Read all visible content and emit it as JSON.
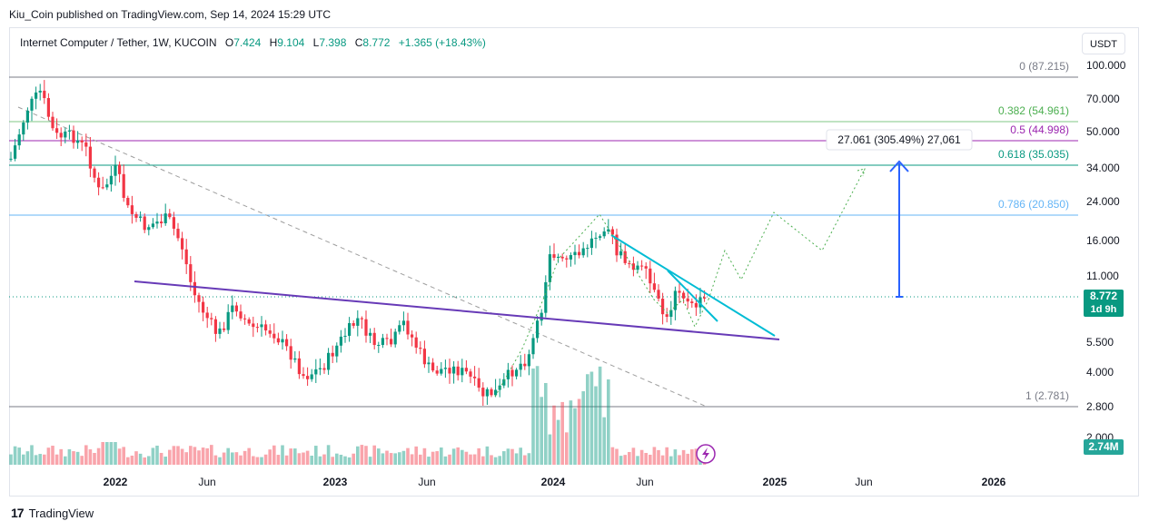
{
  "publisher_text": "Kiu_Coin published on TradingView.com, Sep 14, 2024 15:29 UTC",
  "legend": {
    "symbol": "Internet Computer / Tether, 1W, KUCOIN",
    "open_label": "O",
    "open": "7.424",
    "high_label": "H",
    "high": "9.104",
    "low_label": "L",
    "low": "7.398",
    "close_label": "C",
    "close": "8.772",
    "change": "+1.365 (+18.43%)"
  },
  "currency_button": "USDT",
  "price_axis": {
    "ticks": [
      "100.000",
      "70.000",
      "50.000",
      "34.000",
      "24.000",
      "16.000",
      "11.000",
      "5.500",
      "4.000",
      "2.800",
      "2.000"
    ],
    "last_price": "8.772",
    "countdown": "1d 9h",
    "volume_label": "2.74M"
  },
  "time_axis": {
    "ticks": [
      "2022",
      "Jun",
      "2023",
      "Jun",
      "2024",
      "Jun",
      "2025",
      "Jun",
      "2026"
    ]
  },
  "fib_levels": [
    {
      "label": "0 (87.215)",
      "color": "#787b86"
    },
    {
      "label": "0.382 (54.961)",
      "color": "#4caf50"
    },
    {
      "label": "0.5 (44.998)",
      "color": "#9c27b0"
    },
    {
      "label": "0.618 (35.035)",
      "color": "#089981"
    },
    {
      "label": "0.786 (20.850)",
      "color": "#64b5f6"
    },
    {
      "label": "1 (2.781)",
      "color": "#787b86"
    }
  ],
  "measure_label": "27.061 (305.49%) 27,061",
  "colors": {
    "up": "#089981",
    "down": "#f23645",
    "accent": "#2962ff",
    "purple_line": "#673ab7",
    "cyan_line": "#00bcd4"
  },
  "footer": {
    "logo": "17",
    "brand": "TradingView"
  },
  "icons": {
    "lightning": "lightning-icon"
  }
}
